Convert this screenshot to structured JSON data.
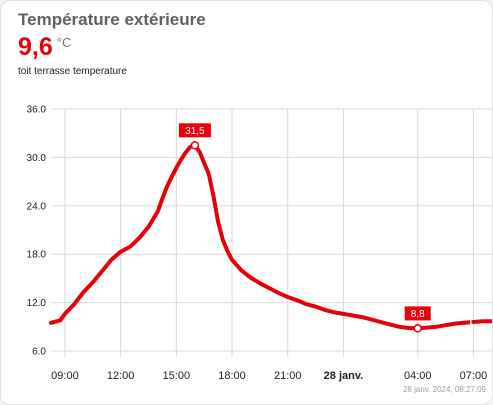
{
  "card": {
    "title": "Température extérieure",
    "value": "9,6",
    "unit": "°C",
    "subtitle": "toit terrasse temperature",
    "updated": "28 janv. 2024, 08:27:09"
  },
  "colors": {
    "line": "#e8000b",
    "grid": "#d9d9d9",
    "text": "#212121",
    "muted": "#9e9e9e"
  },
  "chart_data": {
    "type": "line",
    "title": "",
    "xlabel": "",
    "ylabel": "",
    "ylim": [
      6,
      36
    ],
    "yticks": [
      "36.0",
      "30.0",
      "24.0",
      "18.0",
      "12.0",
      "6.0"
    ],
    "grid": true,
    "x_ticks": [
      {
        "t": 9,
        "label": "09:00",
        "bold": false
      },
      {
        "t": 12,
        "label": "12:00",
        "bold": false
      },
      {
        "t": 15,
        "label": "15:00",
        "bold": false
      },
      {
        "t": 18,
        "label": "18:00",
        "bold": false
      },
      {
        "t": 21,
        "label": "21:00",
        "bold": false
      },
      {
        "t": 24,
        "label": "28 janv.",
        "bold": true
      },
      {
        "t": 28,
        "label": "04:00",
        "bold": false
      },
      {
        "t": 31,
        "label": "07:00",
        "bold": false
      }
    ],
    "series": [
      {
        "name": "",
        "x": [
          8.25,
          8.75,
          9.0,
          9.5,
          10.0,
          10.5,
          11.0,
          11.5,
          12.0,
          12.5,
          13.0,
          13.5,
          14.0,
          14.25,
          14.5,
          14.75,
          15.0,
          15.25,
          15.5,
          15.75,
          16.0,
          16.25,
          16.5,
          16.75,
          17.0,
          17.25,
          17.5,
          17.75,
          18.0,
          18.5,
          19.0,
          19.5,
          20.0,
          20.5,
          21.0,
          21.5,
          22.0,
          22.5,
          23.0,
          23.5,
          24.0,
          24.5,
          25.0,
          25.5,
          26.0,
          26.5,
          27.0,
          27.5,
          28.0,
          28.5,
          29.0,
          29.5,
          30.0,
          30.5
        ],
        "y": [
          9.5,
          9.8,
          10.6,
          11.8,
          13.3,
          14.5,
          15.9,
          17.3,
          18.3,
          18.9,
          20.0,
          21.4,
          23.3,
          24.9,
          26.4,
          27.6,
          28.7,
          29.7,
          30.6,
          31.3,
          31.5,
          30.7,
          29.3,
          27.9,
          25.2,
          22.0,
          19.8,
          18.4,
          17.3,
          16.0,
          15.1,
          14.4,
          13.8,
          13.2,
          12.7,
          12.3,
          11.8,
          11.5,
          11.1,
          10.8,
          10.6,
          10.4,
          10.2,
          9.9,
          9.6,
          9.3,
          9.0,
          8.85,
          8.8,
          8.9,
          9.0,
          9.2,
          9.4,
          9.5
        ]
      }
    ],
    "gap": [
      30.5,
      31.0
    ],
    "tail": {
      "x": [
        31.0,
        31.5,
        32.0
      ],
      "y": [
        9.6,
        9.7,
        9.7
      ]
    },
    "annotations": [
      {
        "label": "31,5",
        "x": 16.0,
        "y": 31.5
      },
      {
        "label": "8,8",
        "x": 28.0,
        "y": 8.8
      }
    ]
  }
}
